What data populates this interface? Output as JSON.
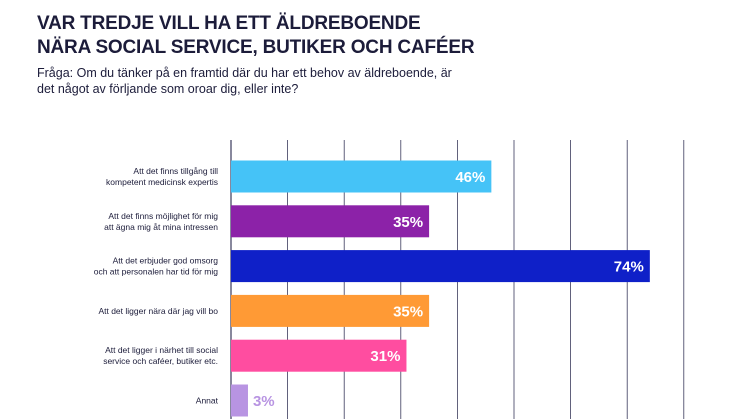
{
  "title": {
    "line1": "VAR TREDJE VILL HA ETT ÄLDREBOENDE",
    "line2": "NÄRA SOCIAL SERVICE, BUTIKER OCH CAFÉER"
  },
  "question": "Fråga: Om du tänker på en framtid där du har ett behov av äldre­boende, är det något av förljande som oroar dig, eller inte?",
  "colors": {
    "text": "#1c1c3a",
    "grid": "#3a3a5c"
  },
  "chart_data": {
    "type": "bar",
    "orientation": "horizontal",
    "title": "VAR TREDJE VILL HA ETT ÄLDREBOENDE NÄRA SOCIAL SERVICE, BUTIKER OCH CAFÉER",
    "xlabel": "",
    "ylabel": "",
    "xlim": [
      0,
      80
    ],
    "grid": true,
    "categories": [
      [
        "Att det finns tillgång till",
        "kompetent medicinsk expertis"
      ],
      [
        "Att det finns möjlighet för mig",
        "att ägna mig åt mina intressen"
      ],
      [
        "Att det erbjuder god omsorg",
        "och att personalen har tid för mig"
      ],
      [
        "Att det ligger nära där jag vill bo"
      ],
      [
        "Att det ligger i närhet till social",
        "service och caféer, butiker etc."
      ],
      [
        "Annat"
      ]
    ],
    "values": [
      46,
      35,
      74,
      35,
      31,
      3
    ],
    "value_labels": [
      "46%",
      "35%",
      "74%",
      "35%",
      "31%",
      "3%"
    ],
    "bar_colors": [
      "#45c3f7",
      "#8c22a8",
      "#0f20c8",
      "#ff9a35",
      "#ff4da0",
      "#b894e2"
    ],
    "label_colors": [
      "#ffffff",
      "#ffffff",
      "#ffffff",
      "#ffffff",
      "#ffffff",
      "#b894e2"
    ]
  }
}
